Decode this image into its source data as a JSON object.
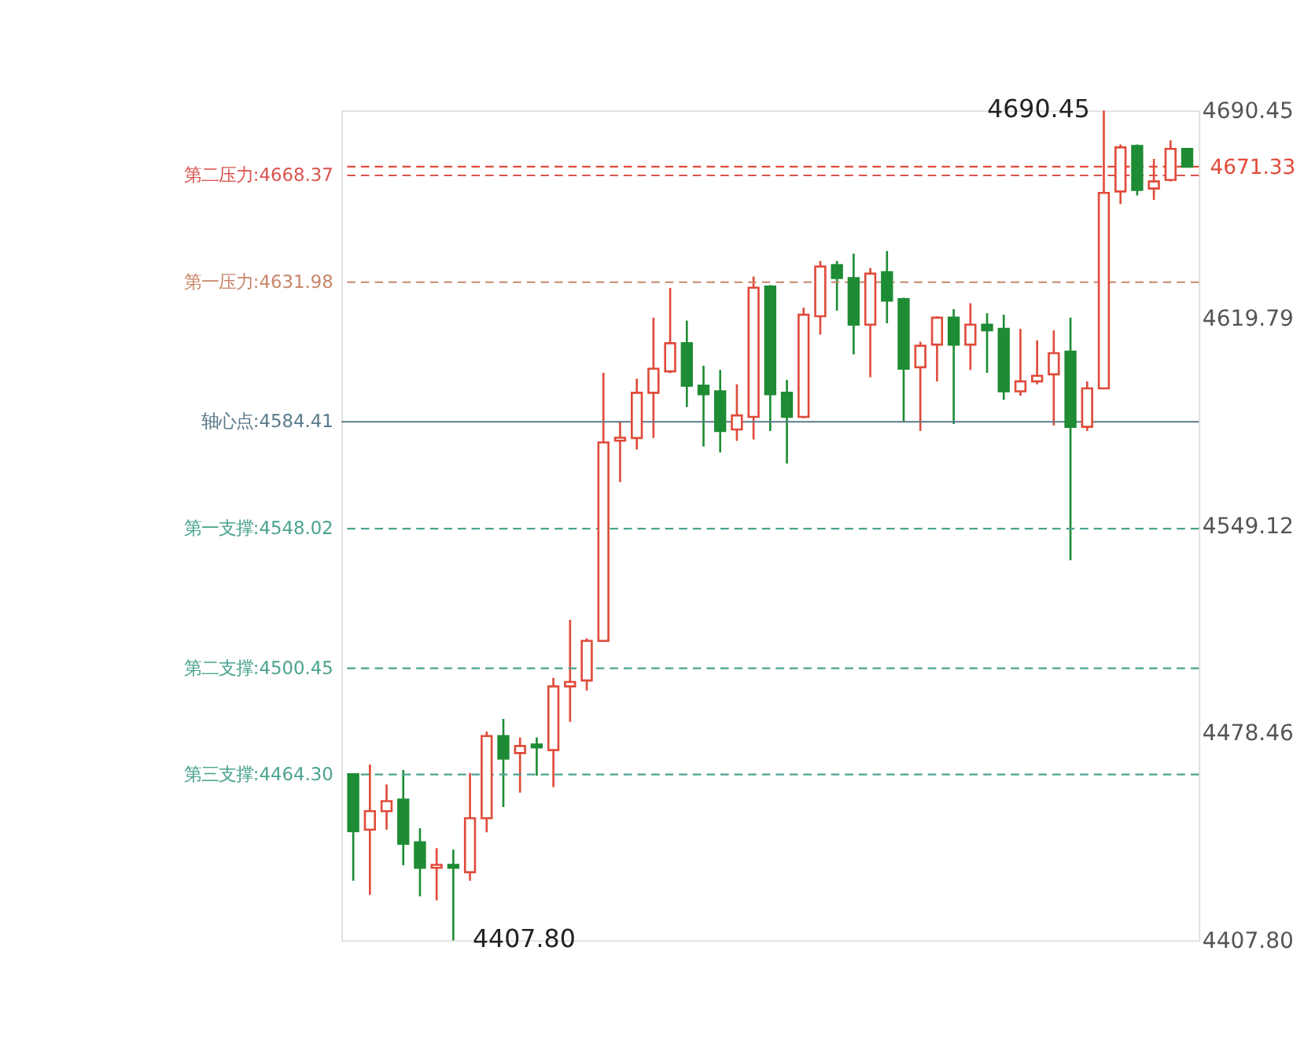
{
  "chart_data": {
    "type": "candlestick",
    "categories": [
      null,
      null,
      null,
      null,
      null,
      null,
      null,
      null,
      null,
      null,
      null,
      null,
      null,
      null,
      null,
      null,
      null,
      null,
      null,
      null,
      null,
      null,
      null,
      null,
      null,
      null,
      null,
      null,
      null,
      null,
      null,
      null,
      null,
      null,
      null,
      null,
      null,
      null,
      null,
      null,
      null,
      null,
      null,
      null,
      null,
      null,
      null,
      null,
      null,
      null,
      null
    ],
    "ohlc": [
      [
        4464.4,
        4464.4,
        4428.1,
        4445.0
      ],
      [
        4445.5,
        4467.7,
        4423.3,
        4451.8
      ],
      [
        4451.8,
        4460.9,
        4445.5,
        4455.2
      ],
      [
        4455.7,
        4465.8,
        4433.4,
        4440.7
      ],
      [
        4441.2,
        4446.0,
        4422.8,
        4432.5
      ],
      [
        4432.5,
        4439.2,
        4421.4,
        4433.5
      ],
      [
        4433.5,
        4438.7,
        4407.8,
        4432.5
      ],
      [
        4431.0,
        4464.8,
        4428.1,
        4449.4
      ],
      [
        4449.4,
        4478.9,
        4444.6,
        4477.4
      ],
      [
        4477.4,
        4483.2,
        4453.2,
        4469.7
      ],
      [
        4471.6,
        4476.9,
        4458.1,
        4474.0
      ],
      [
        4474.5,
        4476.9,
        4463.9,
        4473.5
      ],
      [
        4472.6,
        4497.2,
        4460.0,
        4494.3
      ],
      [
        4494.3,
        4517.0,
        4482.2,
        4495.8
      ],
      [
        4496.3,
        4510.7,
        4492.9,
        4509.8
      ],
      [
        4509.8,
        4601.1,
        4509.5,
        4577.4
      ],
      [
        4578.0,
        4584.6,
        4563.9,
        4579.0
      ],
      [
        4578.9,
        4599.1,
        4575.0,
        4594.3
      ],
      [
        4594.3,
        4619.9,
        4578.9,
        4602.5
      ],
      [
        4601.6,
        4630.0,
        4601.0,
        4611.2
      ],
      [
        4611.2,
        4618.9,
        4589.5,
        4596.7
      ],
      [
        4596.7,
        4603.5,
        4576.0,
        4593.8
      ],
      [
        4594.8,
        4602.1,
        4574.0,
        4581.3
      ],
      [
        4581.8,
        4597.2,
        4577.9,
        4586.6
      ],
      [
        4586.1,
        4633.9,
        4578.4,
        4630.1
      ],
      [
        4630.5,
        4631.0,
        4581.3,
        4593.8
      ],
      [
        4594.3,
        4598.7,
        4570.2,
        4586.1
      ],
      [
        4586.1,
        4623.3,
        4585.6,
        4620.9
      ],
      [
        4620.4,
        4639.2,
        4614.1,
        4637.3
      ],
      [
        4637.8,
        4639.2,
        4622.3,
        4633.4
      ],
      [
        4633.4,
        4641.7,
        4607.4,
        4617.5
      ],
      [
        4617.5,
        4636.8,
        4599.6,
        4634.9
      ],
      [
        4635.4,
        4642.6,
        4618.0,
        4625.7
      ],
      [
        4626.2,
        4626.7,
        4584.2,
        4602.5
      ],
      [
        4603.0,
        4611.7,
        4581.3,
        4610.3
      ],
      [
        4610.7,
        4620.4,
        4598.2,
        4619.9
      ],
      [
        4619.9,
        4622.8,
        4583.7,
        4610.7
      ],
      [
        4610.7,
        4624.8,
        4602.1,
        4617.5
      ],
      [
        4617.5,
        4621.4,
        4601.1,
        4615.6
      ],
      [
        4616.1,
        4620.9,
        4591.9,
        4594.8
      ],
      [
        4594.8,
        4616.1,
        4593.3,
        4598.2
      ],
      [
        4598.2,
        4612.2,
        4597.2,
        4600.1
      ],
      [
        4600.6,
        4615.6,
        4583.2,
        4607.8
      ],
      [
        4608.3,
        4619.9,
        4537.3,
        4582.7
      ],
      [
        4582.7,
        4598.2,
        4581.3,
        4595.8
      ],
      [
        4595.8,
        4690.45,
        4595.5,
        4662.4
      ],
      [
        4662.9,
        4678.9,
        4658.6,
        4677.9
      ],
      [
        4678.4,
        4678.9,
        4661.5,
        4663.4
      ],
      [
        4663.9,
        4674.0,
        4660.0,
        4666.3
      ],
      [
        4666.8,
        4680.3,
        4666.3,
        4677.4
      ],
      [
        4677.4,
        4677.4,
        4671.33,
        4671.33
      ]
    ],
    "colors": [
      "#1e8c34",
      "#e04b3a",
      "#e04b3a",
      "#1e8c34",
      "#1e8c34",
      "#e04b3a",
      "#1e8c34",
      "#e04b3a",
      "#e04b3a",
      "#1e8c34",
      "#e04b3a",
      "#1e8c34",
      "#e04b3a",
      "#e04b3a",
      "#e04b3a",
      "#e04b3a",
      "#e04b3a",
      "#e04b3a",
      "#e04b3a",
      "#e04b3a",
      "#1e8c34",
      "#1e8c34",
      "#1e8c34",
      "#e04b3a",
      "#e04b3a",
      "#1e8c34",
      "#1e8c34",
      "#e04b3a",
      "#e04b3a",
      "#1e8c34",
      "#1e8c34",
      "#e04b3a",
      "#1e8c34",
      "#1e8c34",
      "#e04b3a",
      "#e04b3a",
      "#1e8c34",
      "#e04b3a",
      "#1e8c34",
      "#1e8c34",
      "#e04b3a",
      "#e04b3a",
      "#e04b3a",
      "#1e8c34",
      "#e04b3a",
      "#e04b3a",
      "#e04b3a",
      "#1e8c34",
      "#e04b3a",
      "#e04b3a",
      "#1e8c34"
    ],
    "ylim": [
      4407.8,
      4690.45
    ],
    "yticks": [
      4690.45,
      4619.79,
      4549.12,
      4478.46,
      {
        "value": 4407.8,
        "label": "4407.80"
      }
    ],
    "grid": false,
    "ref_lines": [
      {
        "axis": "y",
        "value": 4668.37,
        "label": "第二压力:4668.37",
        "color": "#d9534f",
        "line_style": "dashed"
      },
      {
        "axis": "y",
        "value": 4631.98,
        "label": "第一压力:4631.98",
        "color": "#c8866a",
        "line_style": "dashed"
      },
      {
        "axis": "y",
        "value": 4584.41,
        "label": "轴心点:4584.41",
        "color": "#5a7a8a",
        "line_style": "solid"
      },
      {
        "axis": "y",
        "value": 4548.02,
        "label": "第一支撑:4548.02",
        "color": "#4aa38f",
        "line_style": "dashed"
      },
      {
        "axis": "y",
        "value": 4500.45,
        "label": "第二支撑:4500.45",
        "color": "#4aa38f",
        "line_style": "dashed"
      },
      {
        "axis": "y",
        "value": 4464.3,
        "label": "第三支撑:4464.30",
        "color": "#4aa38f",
        "line_style": "dashed"
      },
      {
        "axis": "y",
        "value": 4671.33,
        "label": "4671.33",
        "color": "#e04b3a",
        "line_style": "dashed"
      }
    ],
    "annotations": [
      "4690.45",
      "4407.80"
    ]
  }
}
